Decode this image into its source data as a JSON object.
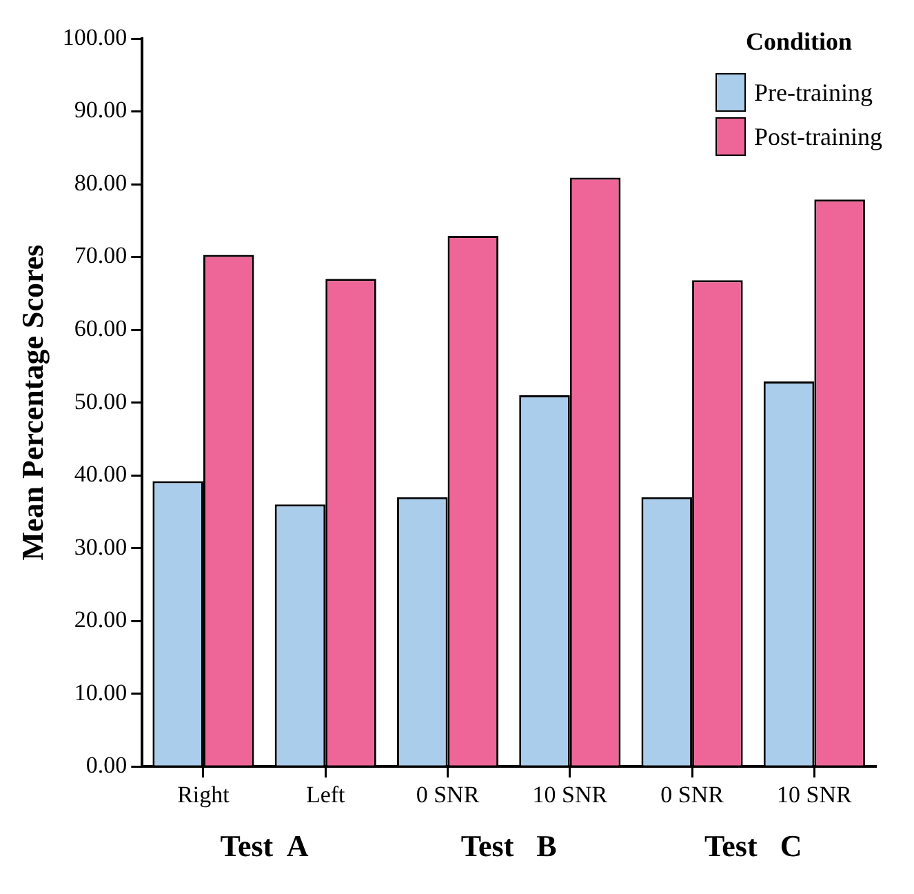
{
  "chart_data": {
    "type": "bar",
    "ylabel": "Mean Percentage Scores",
    "legend_title": "Condition",
    "legend": "top right",
    "grid": false,
    "categories": [
      "Right",
      "Left",
      "0 SNR",
      "10 SNR",
      "0 SNR",
      "10 SNR"
    ],
    "series": [
      {
        "name": "Pre-training",
        "color": "#abcdec",
        "values": [
          39.2,
          36.0,
          37.0,
          51.0,
          37.0,
          52.9
        ]
      },
      {
        "name": "Post-training",
        "color": "#ee6697",
        "values": [
          70.3,
          67.0,
          72.9,
          80.9,
          66.8,
          77.9
        ]
      }
    ],
    "ylim": [
      0,
      100
    ],
    "yticks": [
      {
        "value": 0,
        "label": "0.00"
      },
      {
        "value": 10,
        "label": "10.00"
      },
      {
        "value": 20,
        "label": "20.00"
      },
      {
        "value": 30,
        "label": "30.00"
      },
      {
        "value": 40,
        "label": "40.00"
      },
      {
        "value": 50,
        "label": "50.00"
      },
      {
        "value": 60,
        "label": "60.00"
      },
      {
        "value": 70,
        "label": "70.00"
      },
      {
        "value": 80,
        "label": "80.00"
      },
      {
        "value": 90,
        "label": "90.00"
      },
      {
        "value": 100,
        "label": "100.00"
      }
    ],
    "annotations": [
      "Test  A",
      "Test   B",
      "Test   C"
    ]
  }
}
